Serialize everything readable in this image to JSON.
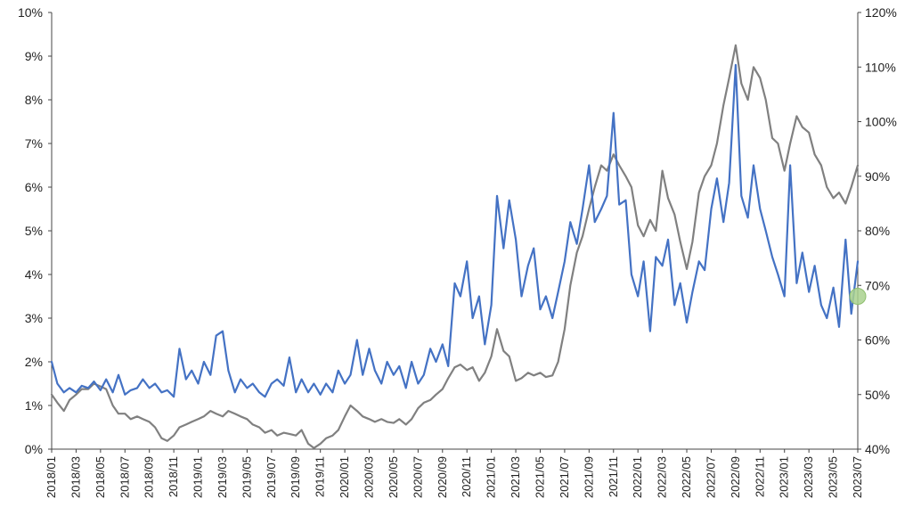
{
  "chart_data": {
    "type": "line",
    "title": "",
    "xlabel": "",
    "ylabel": "",
    "y2label": "",
    "grid": false,
    "x_range": [
      "2018-01",
      "2023-07"
    ],
    "ylim": [
      0,
      10
    ],
    "y2lim": [
      40,
      120
    ],
    "y_ticks": [
      "0%",
      "1%",
      "2%",
      "3%",
      "4%",
      "5%",
      "6%",
      "7%",
      "8%",
      "9%",
      "10%"
    ],
    "y2_ticks": [
      "40%",
      "50%",
      "60%",
      "70%",
      "80%",
      "90%",
      "100%",
      "110%",
      "120%"
    ],
    "x_ticks": [
      "2018/01",
      "2018/03",
      "2018/05",
      "2018/07",
      "2018/09",
      "2018/11",
      "2019/01",
      "2019/03",
      "2019/05",
      "2019/07",
      "2019/09",
      "2019/11",
      "2020/01",
      "2020/03",
      "2020/05",
      "2020/07",
      "2020/09",
      "2020/11",
      "2021/01",
      "2021/03",
      "2021/05",
      "2021/07",
      "2021/09",
      "2021/11",
      "2022/01",
      "2022/03",
      "2022/05",
      "2022/07",
      "2022/09",
      "2022/11",
      "2023/01",
      "2023/03",
      "2023/05",
      "2023/07"
    ],
    "series": [
      {
        "axis": "left",
        "color": "#4472C4",
        "points": [
          [
            "2018-01",
            2.0
          ],
          [
            "2018-01-15",
            1.5
          ],
          [
            "2018-02",
            1.3
          ],
          [
            "2018-02-15",
            1.4
          ],
          [
            "2018-03",
            1.3
          ],
          [
            "2018-03-15",
            1.45
          ],
          [
            "2018-04",
            1.4
          ],
          [
            "2018-04-15",
            1.55
          ],
          [
            "2018-05",
            1.35
          ],
          [
            "2018-05-15",
            1.6
          ],
          [
            "2018-06",
            1.3
          ],
          [
            "2018-06-15",
            1.7
          ],
          [
            "2018-07",
            1.25
          ],
          [
            "2018-07-15",
            1.35
          ],
          [
            "2018-08",
            1.4
          ],
          [
            "2018-08-15",
            1.6
          ],
          [
            "2018-09",
            1.4
          ],
          [
            "2018-09-15",
            1.5
          ],
          [
            "2018-10",
            1.3
          ],
          [
            "2018-10-15",
            1.35
          ],
          [
            "2018-11",
            1.2
          ],
          [
            "2018-11-15",
            2.3
          ],
          [
            "2018-12",
            1.6
          ],
          [
            "2018-12-15",
            1.8
          ],
          [
            "2019-01",
            1.5
          ],
          [
            "2019-01-15",
            2.0
          ],
          [
            "2019-02",
            1.7
          ],
          [
            "2019-02-15",
            2.6
          ],
          [
            "2019-03",
            2.7
          ],
          [
            "2019-03-15",
            1.8
          ],
          [
            "2019-04",
            1.3
          ],
          [
            "2019-04-15",
            1.6
          ],
          [
            "2019-05",
            1.4
          ],
          [
            "2019-05-15",
            1.5
          ],
          [
            "2019-06",
            1.3
          ],
          [
            "2019-06-15",
            1.2
          ],
          [
            "2019-07",
            1.5
          ],
          [
            "2019-07-15",
            1.6
          ],
          [
            "2019-08",
            1.45
          ],
          [
            "2019-08-15",
            2.1
          ],
          [
            "2019-09",
            1.3
          ],
          [
            "2019-09-15",
            1.6
          ],
          [
            "2019-10",
            1.3
          ],
          [
            "2019-10-15",
            1.5
          ],
          [
            "2019-11",
            1.25
          ],
          [
            "2019-11-15",
            1.5
          ],
          [
            "2019-12",
            1.3
          ],
          [
            "2019-12-15",
            1.8
          ],
          [
            "2020-01",
            1.5
          ],
          [
            "2020-01-15",
            1.7
          ],
          [
            "2020-02",
            2.5
          ],
          [
            "2020-02-15",
            1.7
          ],
          [
            "2020-03",
            2.3
          ],
          [
            "2020-03-15",
            1.8
          ],
          [
            "2020-04",
            1.5
          ],
          [
            "2020-04-15",
            2.0
          ],
          [
            "2020-05",
            1.7
          ],
          [
            "2020-05-15",
            1.9
          ],
          [
            "2020-06",
            1.4
          ],
          [
            "2020-06-15",
            2.0
          ],
          [
            "2020-07",
            1.5
          ],
          [
            "2020-07-15",
            1.7
          ],
          [
            "2020-08",
            2.3
          ],
          [
            "2020-08-15",
            2.0
          ],
          [
            "2020-09",
            2.4
          ],
          [
            "2020-09-15",
            1.9
          ],
          [
            "2020-10",
            3.8
          ],
          [
            "2020-10-15",
            3.5
          ],
          [
            "2020-11",
            4.3
          ],
          [
            "2020-11-15",
            3.0
          ],
          [
            "2020-12",
            3.5
          ],
          [
            "2020-12-15",
            2.4
          ],
          [
            "2021-01",
            3.3
          ],
          [
            "2021-01-15",
            5.8
          ],
          [
            "2021-02",
            4.6
          ],
          [
            "2021-02-15",
            5.7
          ],
          [
            "2021-03",
            4.8
          ],
          [
            "2021-03-15",
            3.5
          ],
          [
            "2021-04",
            4.2
          ],
          [
            "2021-04-15",
            4.6
          ],
          [
            "2021-05",
            3.2
          ],
          [
            "2021-05-15",
            3.5
          ],
          [
            "2021-06",
            3.0
          ],
          [
            "2021-06-15",
            3.6
          ],
          [
            "2021-07",
            4.3
          ],
          [
            "2021-07-15",
            5.2
          ],
          [
            "2021-08",
            4.7
          ],
          [
            "2021-08-15",
            5.5
          ],
          [
            "2021-09",
            6.5
          ],
          [
            "2021-09-15",
            5.2
          ],
          [
            "2021-10",
            5.5
          ],
          [
            "2021-10-15",
            5.8
          ],
          [
            "2021-11",
            7.7
          ],
          [
            "2021-11-15",
            5.6
          ],
          [
            "2021-12",
            5.7
          ],
          [
            "2021-12-15",
            4.0
          ],
          [
            "2022-01",
            3.5
          ],
          [
            "2022-01-15",
            4.3
          ],
          [
            "2022-02",
            2.7
          ],
          [
            "2022-02-15",
            4.4
          ],
          [
            "2022-03",
            4.2
          ],
          [
            "2022-03-15",
            4.8
          ],
          [
            "2022-04",
            3.3
          ],
          [
            "2022-04-15",
            3.8
          ],
          [
            "2022-05",
            2.9
          ],
          [
            "2022-05-15",
            3.6
          ],
          [
            "2022-06",
            4.3
          ],
          [
            "2022-06-15",
            4.1
          ],
          [
            "2022-07",
            5.5
          ],
          [
            "2022-07-15",
            6.2
          ],
          [
            "2022-08",
            5.2
          ],
          [
            "2022-08-15",
            6.1
          ],
          [
            "2022-09",
            8.8
          ],
          [
            "2022-09-15",
            5.8
          ],
          [
            "2022-10",
            5.3
          ],
          [
            "2022-10-15",
            6.5
          ],
          [
            "2022-11",
            5.5
          ],
          [
            "2022-11-15",
            5.0
          ],
          [
            "2022-12",
            4.4
          ],
          [
            "2022-12-15",
            4.0
          ],
          [
            "2023-01",
            3.5
          ],
          [
            "2023-01-15",
            6.5
          ],
          [
            "2023-02",
            3.8
          ],
          [
            "2023-02-15",
            4.5
          ],
          [
            "2023-03",
            3.6
          ],
          [
            "2023-03-15",
            4.2
          ],
          [
            "2023-04",
            3.3
          ],
          [
            "2023-04-15",
            3.0
          ],
          [
            "2023-05",
            3.7
          ],
          [
            "2023-05-15",
            2.8
          ],
          [
            "2023-06",
            4.8
          ],
          [
            "2023-06-15",
            3.1
          ],
          [
            "2023-07",
            4.3
          ]
        ]
      },
      {
        "axis": "right",
        "color": "#808080",
        "points": [
          [
            "2018-01",
            50
          ],
          [
            "2018-01-15",
            48.5
          ],
          [
            "2018-02",
            47
          ],
          [
            "2018-02-15",
            49
          ],
          [
            "2018-03",
            50
          ],
          [
            "2018-03-15",
            51
          ],
          [
            "2018-04",
            51
          ],
          [
            "2018-04-15",
            52
          ],
          [
            "2018-05",
            51.5
          ],
          [
            "2018-05-15",
            51
          ],
          [
            "2018-06",
            48
          ],
          [
            "2018-06-15",
            46.5
          ],
          [
            "2018-07",
            46.5
          ],
          [
            "2018-07-15",
            45.5
          ],
          [
            "2018-08",
            46
          ],
          [
            "2018-08-15",
            45.5
          ],
          [
            "2018-09",
            45
          ],
          [
            "2018-09-15",
            44
          ],
          [
            "2018-10",
            42
          ],
          [
            "2018-10-15",
            41.5
          ],
          [
            "2018-11",
            42.5
          ],
          [
            "2018-11-15",
            44
          ],
          [
            "2018-12",
            44.5
          ],
          [
            "2018-12-15",
            45
          ],
          [
            "2019-01",
            45.5
          ],
          [
            "2019-01-15",
            46
          ],
          [
            "2019-02",
            47
          ],
          [
            "2019-02-15",
            46.5
          ],
          [
            "2019-03",
            46
          ],
          [
            "2019-03-15",
            47
          ],
          [
            "2019-04",
            46.5
          ],
          [
            "2019-04-15",
            46
          ],
          [
            "2019-05",
            45.5
          ],
          [
            "2019-05-15",
            44.5
          ],
          [
            "2019-06",
            44
          ],
          [
            "2019-06-15",
            43
          ],
          [
            "2019-07",
            43.5
          ],
          [
            "2019-07-15",
            42.5
          ],
          [
            "2019-08",
            43
          ],
          [
            "2019-08-15",
            42.8
          ],
          [
            "2019-09",
            42.5
          ],
          [
            "2019-09-15",
            43.5
          ],
          [
            "2019-10",
            41
          ],
          [
            "2019-10-15",
            40.2
          ],
          [
            "2019-11",
            41
          ],
          [
            "2019-11-15",
            42
          ],
          [
            "2019-12",
            42.5
          ],
          [
            "2019-12-15",
            43.5
          ],
          [
            "2020-01",
            46
          ],
          [
            "2020-01-15",
            48
          ],
          [
            "2020-02",
            47
          ],
          [
            "2020-02-15",
            46
          ],
          [
            "2020-03",
            45.5
          ],
          [
            "2020-03-15",
            45
          ],
          [
            "2020-04",
            45.5
          ],
          [
            "2020-04-15",
            45
          ],
          [
            "2020-05",
            44.8
          ],
          [
            "2020-05-15",
            45.5
          ],
          [
            "2020-06",
            44.5
          ],
          [
            "2020-06-15",
            45.5
          ],
          [
            "2020-07",
            47.5
          ],
          [
            "2020-07-15",
            48.5
          ],
          [
            "2020-08",
            49
          ],
          [
            "2020-08-15",
            50
          ],
          [
            "2020-09",
            51
          ],
          [
            "2020-09-15",
            53
          ],
          [
            "2020-10",
            55
          ],
          [
            "2020-10-15",
            55.5
          ],
          [
            "2020-11",
            54.5
          ],
          [
            "2020-11-15",
            55
          ],
          [
            "2020-12",
            52.5
          ],
          [
            "2020-12-15",
            54
          ],
          [
            "2021-01",
            57
          ],
          [
            "2021-01-15",
            62
          ],
          [
            "2021-02",
            58
          ],
          [
            "2021-02-15",
            57
          ],
          [
            "2021-03",
            52.5
          ],
          [
            "2021-03-15",
            53
          ],
          [
            "2021-04",
            54
          ],
          [
            "2021-04-15",
            53.5
          ],
          [
            "2021-05",
            54
          ],
          [
            "2021-05-15",
            53.2
          ],
          [
            "2021-06",
            53.5
          ],
          [
            "2021-06-15",
            56
          ],
          [
            "2021-07",
            62
          ],
          [
            "2021-07-15",
            70
          ],
          [
            "2021-08",
            76
          ],
          [
            "2021-08-15",
            79
          ],
          [
            "2021-09",
            84
          ],
          [
            "2021-09-15",
            88
          ],
          [
            "2021-10",
            92
          ],
          [
            "2021-10-15",
            91
          ],
          [
            "2021-11",
            94
          ],
          [
            "2021-11-15",
            92
          ],
          [
            "2021-12",
            90
          ],
          [
            "2021-12-15",
            88
          ],
          [
            "2022-01",
            81
          ],
          [
            "2022-01-15",
            79
          ],
          [
            "2022-02",
            82
          ],
          [
            "2022-02-15",
            80
          ],
          [
            "2022-03",
            91
          ],
          [
            "2022-03-15",
            86
          ],
          [
            "2022-04",
            83
          ],
          [
            "2022-04-15",
            78
          ],
          [
            "2022-05",
            73
          ],
          [
            "2022-05-15",
            78
          ],
          [
            "2022-06",
            87
          ],
          [
            "2022-06-15",
            90
          ],
          [
            "2022-07",
            92
          ],
          [
            "2022-07-15",
            96
          ],
          [
            "2022-08",
            103
          ],
          [
            "2022-08-15",
            108
          ],
          [
            "2022-09",
            114
          ],
          [
            "2022-09-15",
            107
          ],
          [
            "2022-10",
            104
          ],
          [
            "2022-10-15",
            110
          ],
          [
            "2022-11",
            108
          ],
          [
            "2022-11-15",
            104
          ],
          [
            "2022-12",
            97
          ],
          [
            "2022-12-15",
            96
          ],
          [
            "2023-01",
            91
          ],
          [
            "2023-01-15",
            96
          ],
          [
            "2023-02",
            101
          ],
          [
            "2023-02-15",
            99
          ],
          [
            "2023-03",
            98
          ],
          [
            "2023-03-15",
            94
          ],
          [
            "2023-04",
            92
          ],
          [
            "2023-04-15",
            88
          ],
          [
            "2023-05",
            86
          ],
          [
            "2023-05-15",
            87
          ],
          [
            "2023-06",
            85
          ],
          [
            "2023-06-15",
            88
          ],
          [
            "2023-07",
            92
          ]
        ]
      }
    ],
    "marker": {
      "x": "2023-07",
      "axis": "right",
      "value": 68,
      "color": "#A9D18E"
    }
  }
}
